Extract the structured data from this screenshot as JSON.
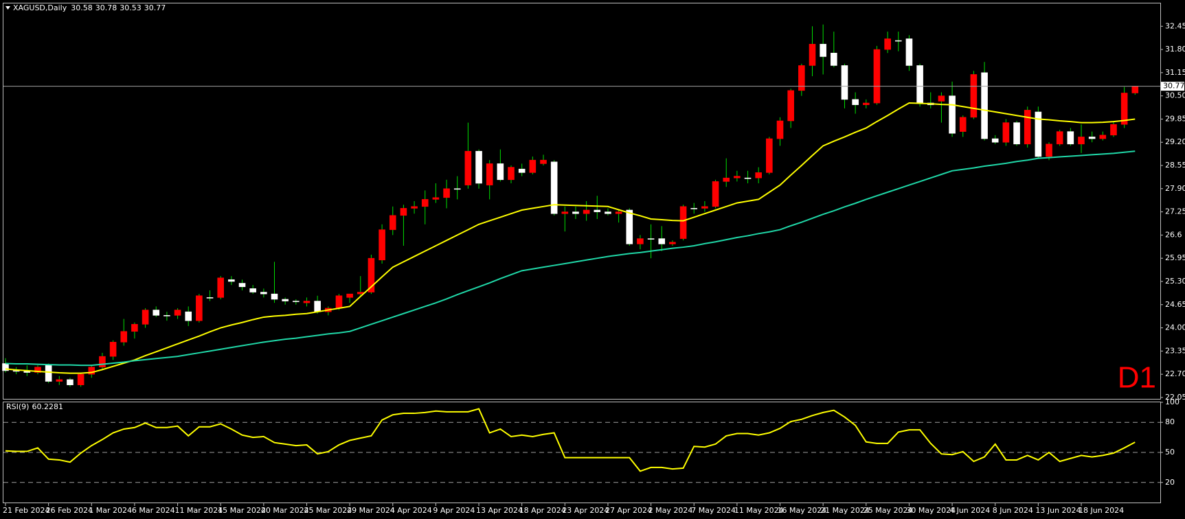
{
  "chart_data": [
    {
      "type": "candlestick",
      "title": "XAGUSD,Daily",
      "categories": [
        "21 Feb 2024",
        null,
        null,
        null,
        "26 Feb 2024",
        null,
        null,
        null,
        "1 Mar 2024",
        null,
        null,
        null,
        "6 Mar 2024",
        null,
        null,
        null,
        "11 Mar 2024",
        null,
        null,
        null,
        "15 Mar 2024",
        null,
        null,
        null,
        "20 Mar 2024",
        null,
        null,
        null,
        "25 Mar 2024",
        null,
        null,
        null,
        "29 Mar 2024",
        null,
        null,
        null,
        "4 Apr 2024",
        null,
        null,
        null,
        "9 Apr 2024",
        null,
        null,
        null,
        "13 Apr 2024",
        null,
        null,
        null,
        "18 Apr 2024",
        null,
        null,
        null,
        "23 Apr 2024",
        null,
        null,
        null,
        "27 Apr 2024",
        null,
        null,
        null,
        "2 May 2024",
        null,
        null,
        null,
        "7 May 2024",
        null,
        null,
        null,
        "11 May 2024",
        null,
        null,
        null,
        "16 May 2024",
        null,
        null,
        null,
        "21 May 2024",
        null,
        null,
        null,
        "25 May 2024",
        null,
        null,
        null,
        "30 May 2024",
        null,
        null,
        null,
        "4 Jun 2024",
        null,
        null,
        null,
        "8 Jun 2024",
        null,
        null,
        null,
        "13 Jun 2024",
        null,
        null,
        null,
        "18 Jun 2024",
        null,
        null,
        null,
        null,
        null
      ],
      "ohlc": [
        [
          23.0,
          23.15,
          22.75,
          22.8
        ],
        [
          22.8,
          22.9,
          22.7,
          22.8
        ],
        [
          22.8,
          22.95,
          22.65,
          22.75
        ],
        [
          22.75,
          22.95,
          22.7,
          22.9
        ],
        [
          22.95,
          23.0,
          22.45,
          22.5
        ],
        [
          22.5,
          22.65,
          22.4,
          22.55
        ],
        [
          22.55,
          22.6,
          22.35,
          22.4
        ],
        [
          22.4,
          22.75,
          22.35,
          22.7
        ],
        [
          22.7,
          22.95,
          22.6,
          22.9
        ],
        [
          22.9,
          23.3,
          22.85,
          23.2
        ],
        [
          23.2,
          23.65,
          23.1,
          23.6
        ],
        [
          23.6,
          24.25,
          23.5,
          23.9
        ],
        [
          23.9,
          24.15,
          23.7,
          24.1
        ],
        [
          24.1,
          24.55,
          24.0,
          24.5
        ],
        [
          24.5,
          24.6,
          24.3,
          24.35
        ],
        [
          24.35,
          24.45,
          24.2,
          24.35
        ],
        [
          24.35,
          24.55,
          24.25,
          24.5
        ],
        [
          24.45,
          24.6,
          24.05,
          24.2
        ],
        [
          24.2,
          24.95,
          24.15,
          24.9
        ],
        [
          24.85,
          25.05,
          24.75,
          24.85
        ],
        [
          24.85,
          25.45,
          24.8,
          25.4
        ],
        [
          25.35,
          25.45,
          25.2,
          25.3
        ],
        [
          25.25,
          25.35,
          25.05,
          25.15
        ],
        [
          25.1,
          25.2,
          24.95,
          25.0
        ],
        [
          25.0,
          25.1,
          24.85,
          24.95
        ],
        [
          24.95,
          25.85,
          24.7,
          24.8
        ],
        [
          24.8,
          24.85,
          24.65,
          24.75
        ],
        [
          24.75,
          24.8,
          24.65,
          24.75
        ],
        [
          24.7,
          24.85,
          24.6,
          24.75
        ],
        [
          24.75,
          24.9,
          24.4,
          24.45
        ],
        [
          24.45,
          24.6,
          24.35,
          24.55
        ],
        [
          24.55,
          24.95,
          24.5,
          24.9
        ],
        [
          24.85,
          24.95,
          24.7,
          24.95
        ],
        [
          24.95,
          25.45,
          24.9,
          25.0
        ],
        [
          25.0,
          26.05,
          24.95,
          25.95
        ],
        [
          25.9,
          26.9,
          25.8,
          26.75
        ],
        [
          26.75,
          27.4,
          26.6,
          27.15
        ],
        [
          27.15,
          27.45,
          26.3,
          27.35
        ],
        [
          27.35,
          27.55,
          27.2,
          27.4
        ],
        [
          27.4,
          27.85,
          26.9,
          27.6
        ],
        [
          27.6,
          28.05,
          27.5,
          27.65
        ],
        [
          27.65,
          28.15,
          27.35,
          27.9
        ],
        [
          27.9,
          28.25,
          27.6,
          27.9
        ],
        [
          28.0,
          29.75,
          27.9,
          28.95
        ],
        [
          28.95,
          29.0,
          27.9,
          28.05
        ],
        [
          28.0,
          28.7,
          27.6,
          28.6
        ],
        [
          28.6,
          29.0,
          28.1,
          28.15
        ],
        [
          28.15,
          28.55,
          28.05,
          28.5
        ],
        [
          28.45,
          28.6,
          28.25,
          28.35
        ],
        [
          28.35,
          28.8,
          28.3,
          28.7
        ],
        [
          28.6,
          28.85,
          28.55,
          28.7
        ],
        [
          28.65,
          28.7,
          27.15,
          27.2
        ],
        [
          27.2,
          27.4,
          26.7,
          27.25
        ],
        [
          27.25,
          27.4,
          27.05,
          27.2
        ],
        [
          27.2,
          27.55,
          27.0,
          27.3
        ],
        [
          27.3,
          27.7,
          27.05,
          27.25
        ],
        [
          27.25,
          27.35,
          27.15,
          27.2
        ],
        [
          27.2,
          27.3,
          26.95,
          27.25
        ],
        [
          27.3,
          27.35,
          26.3,
          26.35
        ],
        [
          26.35,
          26.6,
          26.2,
          26.5
        ],
        [
          26.5,
          26.9,
          25.95,
          26.5
        ],
        [
          26.5,
          26.85,
          26.15,
          26.35
        ],
        [
          26.35,
          26.45,
          26.3,
          26.4
        ],
        [
          26.5,
          27.45,
          26.45,
          27.4
        ],
        [
          27.35,
          27.5,
          27.2,
          27.35
        ],
        [
          27.35,
          27.55,
          27.25,
          27.4
        ],
        [
          27.4,
          28.15,
          27.35,
          28.1
        ],
        [
          28.1,
          28.75,
          27.95,
          28.2
        ],
        [
          28.2,
          28.4,
          28.1,
          28.25
        ],
        [
          28.2,
          28.4,
          28.05,
          28.2
        ],
        [
          28.2,
          28.5,
          28.05,
          28.35
        ],
        [
          28.35,
          29.35,
          28.3,
          29.3
        ],
        [
          29.3,
          29.9,
          29.1,
          29.8
        ],
        [
          29.8,
          30.7,
          29.6,
          30.65
        ],
        [
          30.65,
          31.4,
          30.5,
          31.35
        ],
        [
          31.35,
          32.45,
          31.05,
          31.95
        ],
        [
          31.95,
          32.5,
          31.1,
          31.6
        ],
        [
          31.7,
          32.3,
          31.3,
          31.35
        ],
        [
          31.35,
          31.4,
          30.15,
          30.4
        ],
        [
          30.4,
          30.6,
          30.0,
          30.25
        ],
        [
          30.25,
          30.4,
          30.15,
          30.3
        ],
        [
          30.3,
          31.9,
          30.25,
          31.8
        ],
        [
          31.8,
          32.3,
          31.7,
          32.1
        ],
        [
          32.05,
          32.3,
          31.75,
          32.05
        ],
        [
          32.1,
          32.2,
          31.2,
          31.35
        ],
        [
          31.35,
          31.4,
          30.2,
          30.3
        ],
        [
          30.3,
          30.6,
          30.15,
          30.25
        ],
        [
          30.35,
          30.6,
          29.75,
          30.5
        ],
        [
          30.5,
          30.9,
          29.35,
          29.45
        ],
        [
          29.5,
          29.95,
          29.35,
          29.9
        ],
        [
          29.9,
          31.2,
          29.85,
          31.1
        ],
        [
          31.15,
          31.45,
          29.25,
          29.3
        ],
        [
          29.3,
          29.4,
          29.15,
          29.2
        ],
        [
          29.2,
          29.85,
          29.1,
          29.75
        ],
        [
          29.75,
          29.8,
          29.1,
          29.15
        ],
        [
          29.15,
          30.2,
          29.05,
          30.1
        ],
        [
          30.05,
          30.2,
          28.75,
          28.8
        ],
        [
          28.8,
          29.2,
          28.7,
          29.15
        ],
        [
          29.15,
          29.55,
          29.1,
          29.5
        ],
        [
          29.5,
          29.6,
          29.1,
          29.15
        ],
        [
          29.15,
          29.7,
          28.9,
          29.35
        ],
        [
          29.35,
          29.5,
          29.2,
          29.3
        ],
        [
          29.3,
          29.5,
          29.25,
          29.4
        ],
        [
          29.4,
          29.8,
          29.35,
          29.7
        ],
        [
          29.7,
          30.75,
          29.6,
          30.58
        ],
        [
          30.58,
          30.78,
          30.53,
          30.77
        ]
      ],
      "up_color": "#ff0000",
      "down_color": "#ffffff",
      "wick_color": "#00e000",
      "series": [
        {
          "color": "#ffff00",
          "values": [
            22.85,
            22.82,
            22.8,
            22.78,
            22.76,
            22.74,
            22.73,
            22.73,
            22.75,
            22.83,
            22.92,
            23.01,
            23.1,
            23.22,
            23.33,
            23.44,
            23.55,
            23.66,
            23.77,
            23.89,
            24.0,
            24.08,
            24.15,
            24.23,
            24.3,
            24.33,
            24.35,
            24.38,
            24.4,
            24.45,
            24.5,
            24.55,
            24.6,
            24.88,
            25.15,
            25.43,
            25.7,
            25.85,
            26.0,
            26.15,
            26.3,
            26.45,
            26.6,
            26.75,
            26.9,
            27.0,
            27.1,
            27.2,
            27.3,
            27.35,
            27.4,
            27.45,
            27.44,
            27.43,
            27.42,
            27.41,
            27.4,
            27.31,
            27.22,
            27.14,
            27.05,
            27.03,
            27.01,
            27.0,
            27.1,
            27.2,
            27.3,
            27.4,
            27.5,
            27.55,
            27.6,
            27.8,
            28.0,
            28.28,
            28.55,
            28.83,
            29.1,
            29.23,
            29.35,
            29.48,
            29.6,
            29.78,
            29.95,
            30.13,
            30.3,
            30.29,
            30.28,
            30.26,
            30.25,
            30.2,
            30.15,
            30.1,
            30.05,
            30.0,
            29.95,
            29.9,
            29.85,
            29.83,
            29.8,
            29.78,
            29.75,
            29.75,
            29.76,
            29.78,
            29.81,
            29.85
          ]
        },
        {
          "color": "#20d8a8",
          "values": [
            23.0,
            22.99,
            22.99,
            22.98,
            22.97,
            22.96,
            22.96,
            22.95,
            22.95,
            22.98,
            23.01,
            23.04,
            23.08,
            23.11,
            23.14,
            23.17,
            23.2,
            23.25,
            23.3,
            23.35,
            23.4,
            23.45,
            23.5,
            23.55,
            23.6,
            23.64,
            23.68,
            23.71,
            23.75,
            23.79,
            23.83,
            23.86,
            23.9,
            24.0,
            24.1,
            24.2,
            24.3,
            24.4,
            24.5,
            24.6,
            24.7,
            24.81,
            24.93,
            25.04,
            25.15,
            25.26,
            25.38,
            25.49,
            25.6,
            25.65,
            25.7,
            25.75,
            25.8,
            25.85,
            25.9,
            25.95,
            26.0,
            26.04,
            26.08,
            26.11,
            26.15,
            26.19,
            26.23,
            26.26,
            26.3,
            26.36,
            26.41,
            26.47,
            26.53,
            26.58,
            26.64,
            26.69,
            26.75,
            26.86,
            26.96,
            27.07,
            27.18,
            27.28,
            27.39,
            27.49,
            27.6,
            27.7,
            27.8,
            27.9,
            28.0,
            28.1,
            28.2,
            28.3,
            28.4,
            28.44,
            28.48,
            28.53,
            28.57,
            28.61,
            28.66,
            28.7,
            28.75,
            28.77,
            28.79,
            28.81,
            28.83,
            28.85,
            28.87,
            28.89,
            28.92,
            28.95
          ]
        }
      ],
      "ylim": [
        22.01,
        33.09
      ],
      "yticks": [
        32.45,
        {
          "value": 31.8,
          "label": "31.80"
        },
        31.15,
        {
          "value": 30.5,
          "label": "30.50"
        },
        29.85,
        {
          "value": 29.2,
          "label": "29.20"
        },
        28.55,
        {
          "value": 27.9,
          "label": "27.90"
        },
        27.25,
        26.6,
        25.95,
        {
          "value": 25.3,
          "label": "25.30"
        },
        24.65,
        {
          "value": 24.0,
          "label": "24.00"
        },
        23.35,
        {
          "value": 22.7,
          "label": "22.70"
        },
        22.05
      ],
      "price_line_color": "#a0a0a0",
      "annotation": "D1",
      "annotation_color": "#ff0000"
    },
    {
      "type": "line",
      "title": "RSI(9)",
      "series": [
        {
          "color": "#ffff00",
          "values": [
            51.5,
            51,
            51,
            54.5,
            43.3,
            42.5,
            40.3,
            49.3,
            56.8,
            62.8,
            69.5,
            73.3,
            74.8,
            79.3,
            74.8,
            74.8,
            76.3,
            66.5,
            75.5,
            75.5,
            78.5,
            73.3,
            67.3,
            65,
            65.8,
            59.8,
            58.3,
            56.8,
            57.5,
            48.5,
            50.8,
            57.5,
            62,
            64.3,
            66.5,
            82.3,
            87.5,
            89,
            89,
            89.8,
            91.3,
            90.5,
            90.5,
            90.5,
            93.5,
            69.5,
            73.3,
            65.8,
            67.3,
            65.8,
            68,
            69.5,
            44.8,
            44.8,
            44.8,
            44.8,
            44.8,
            44.8,
            44.8,
            31.3,
            35,
            35,
            33.5,
            34.3,
            56,
            55.3,
            58.3,
            66.5,
            68.8,
            68.8,
            67.3,
            69.5,
            74,
            80.8,
            83,
            86.8,
            89.8,
            92,
            85.3,
            77,
            60.5,
            59,
            59,
            70.3,
            72.5,
            72.5,
            59,
            48.5,
            47.8,
            50.8,
            41,
            45.5,
            58.3,
            42.5,
            42.5,
            47,
            42.5,
            50,
            41,
            44,
            47,
            45.5,
            47,
            49.3,
            54.5,
            60.2281
          ]
        }
      ],
      "ylim": [
        0,
        100
      ],
      "yticks": [
        100,
        80,
        50,
        20
      ],
      "levels": [
        80,
        50,
        20
      ],
      "level_color": "#a0a0a0"
    }
  ]
}
